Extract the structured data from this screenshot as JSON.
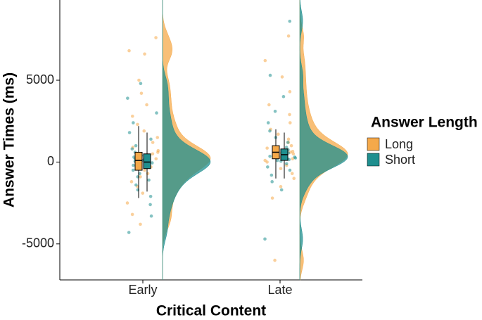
{
  "chart_data": {
    "type": "raincloud",
    "x_label": "Critical Content",
    "y_label": "Answer Times (ms)",
    "categories": [
      "Early",
      "Late"
    ],
    "ylim": [
      -7200,
      9900
    ],
    "yticks": [
      -5000,
      0,
      5000
    ],
    "legend_title": "Answer Length",
    "legend": "right",
    "series": [
      {
        "name": "Long",
        "color": "#f5a94a",
        "values": [
          [
            7600,
            6800,
            6600,
            5000,
            4200,
            3500,
            2800,
            2300,
            1900,
            1500,
            1200,
            900,
            700,
            500,
            300,
            200,
            100,
            0,
            -100,
            -300,
            -500,
            -700,
            -900,
            -1200,
            -1500,
            -1900,
            -2500,
            -3200,
            -3800,
            600,
            400,
            250
          ],
          [
            7700,
            6200,
            5200,
            4300,
            3500,
            2900,
            2400,
            2000,
            1700,
            1400,
            1200,
            1000,
            850,
            700,
            600,
            500,
            400,
            300,
            200,
            100,
            0,
            -200,
            -400,
            -700,
            -1000,
            -1500,
            -2200,
            -6000,
            650,
            550
          ]
        ],
        "boxes": [
          {
            "min": -2200,
            "q1": -500,
            "median": 100,
            "q3": 600,
            "max": 2200
          },
          {
            "min": -1000,
            "q1": 200,
            "median": 600,
            "q3": 1000,
            "max": 2000
          }
        ]
      },
      {
        "name": "Short",
        "color": "#1f8f8f",
        "values": [
          [
            4800,
            3900,
            3000,
            2400,
            1800,
            1400,
            1000,
            800,
            600,
            400,
            300,
            150,
            50,
            -50,
            -200,
            -350,
            -500,
            -700,
            -900,
            -1100,
            -1400,
            -1700,
            -2100,
            -2600,
            -3300,
            -4300,
            200,
            100,
            -150,
            0
          ],
          [
            8600,
            5300,
            4000,
            3100,
            2400,
            1900,
            1500,
            1200,
            900,
            750,
            600,
            500,
            420,
            350,
            250,
            150,
            50,
            -100,
            -300,
            -500,
            -800,
            -1200,
            -1700,
            -4700,
            450,
            380,
            300,
            550,
            200,
            100
          ]
        ],
        "boxes": [
          {
            "min": -1800,
            "q1": -400,
            "median": 0,
            "q3": 500,
            "max": 1800
          },
          {
            "min": -1000,
            "q1": 100,
            "median": 450,
            "q3": 800,
            "max": 1800
          }
        ]
      }
    ]
  }
}
